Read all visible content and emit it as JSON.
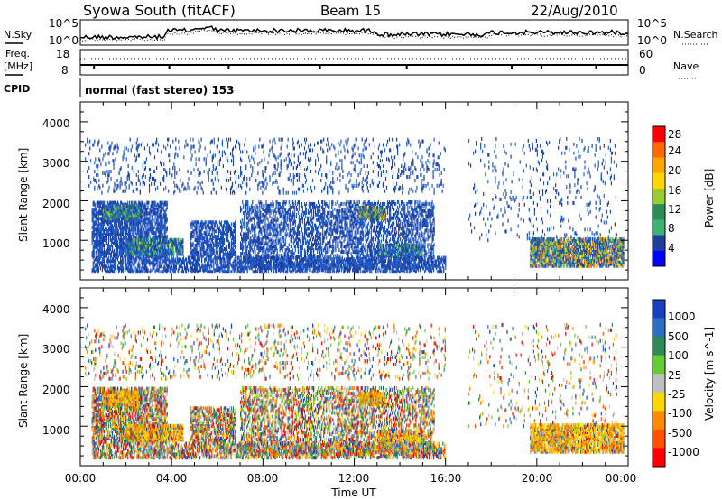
{
  "header": {
    "title": "Syowa South (fitACF)",
    "beam": "Beam 15",
    "date": "22/Aug/2010"
  },
  "noise_panel": {
    "left_label": "N.Sky",
    "left_ticks": [
      "10^5",
      "10^0"
    ],
    "right_ticks": [
      "10^5",
      "10^0"
    ],
    "right_label": "N.Search"
  },
  "freq_panel": {
    "left_label_line1": "Freq.",
    "left_label_line2": "[MHz]",
    "left_ticks": [
      "18",
      "8"
    ],
    "right_ticks": [
      "60",
      "0"
    ],
    "right_label": "Nave"
  },
  "cpid": {
    "label": "CPID",
    "text": "normal (fast stereo) 153"
  },
  "x_axis": {
    "label": "Time UT",
    "ticks": [
      "00:00",
      "04:00",
      "08:00",
      "12:00",
      "16:00",
      "20:00",
      "00:00"
    ],
    "range_hours": [
      0,
      24
    ]
  },
  "power_panel": {
    "ylabel": "Slant Range [km]",
    "yticks": [
      "4000",
      "3000",
      "2000",
      "1000"
    ],
    "colorbar_label": "Power [dB]",
    "colorbar_ticks": [
      "28",
      "24",
      "20",
      "16",
      "12",
      "8",
      "4"
    ],
    "colorbar_colors": [
      "#ff0000",
      "#ff6a00",
      "#ffa500",
      "#ffd700",
      "#9acd32",
      "#2e8b57",
      "#3cb371",
      "#1e3fa0",
      "#0000ff"
    ]
  },
  "velocity_panel": {
    "ylabel": "Slant Range [km]",
    "yticks": [
      "4000",
      "3000",
      "2000",
      "1000"
    ],
    "colorbar_label": "Velocity [m s^-1]",
    "colorbar_ticks": [
      "1000",
      "500",
      "100",
      "25",
      "-25",
      "-100",
      "-500",
      "-1000"
    ],
    "colorbar_colors": [
      "#1a3fbf",
      "#2d6fc0",
      "#2e8b57",
      "#66cc33",
      "#c0c0c0",
      "#ffd700",
      "#ff8c00",
      "#ff5000",
      "#ff0000"
    ]
  },
  "chart_data": {
    "type": "heatmap",
    "x_range_hours": [
      0,
      24
    ],
    "y_range_km": [
      0,
      4500
    ],
    "scatter_regions": [
      {
        "t0": 0.5,
        "t1": 3.8,
        "r0": 600,
        "r1": 2000,
        "density": 0.55,
        "power_level": 2
      },
      {
        "t0": 1.0,
        "t1": 2.6,
        "r0": 1550,
        "r1": 1900,
        "density": 0.8,
        "power_level": 3
      },
      {
        "t0": 2.0,
        "t1": 4.5,
        "r0": 650,
        "r1": 1050,
        "density": 0.8,
        "power_level": 3
      },
      {
        "t0": 4.8,
        "t1": 6.8,
        "r0": 600,
        "r1": 1500,
        "density": 0.5,
        "power_level": 2
      },
      {
        "t0": 7.0,
        "t1": 15.5,
        "r0": 300,
        "r1": 2000,
        "density": 0.35,
        "power_level": 1
      },
      {
        "t0": 12.2,
        "t1": 13.4,
        "r0": 1550,
        "r1": 1850,
        "density": 0.9,
        "power_level": 4
      },
      {
        "t0": 13.0,
        "t1": 15.0,
        "r0": 600,
        "r1": 900,
        "density": 0.6,
        "power_level": 3
      },
      {
        "t0": 0.2,
        "t1": 16.0,
        "r0": 2200,
        "r1": 3600,
        "density": 0.08,
        "power_level": 1
      },
      {
        "t0": 0.5,
        "t1": 16.0,
        "r0": 200,
        "r1": 600,
        "density": 0.45,
        "power_level": 2
      },
      {
        "t0": 19.7,
        "t1": 23.8,
        "r0": 350,
        "r1": 1050,
        "density": 0.7,
        "power_level": 4
      },
      {
        "t0": 17.0,
        "t1": 23.5,
        "r0": 1000,
        "r1": 3600,
        "density": 0.04,
        "power_level": 1
      }
    ]
  }
}
